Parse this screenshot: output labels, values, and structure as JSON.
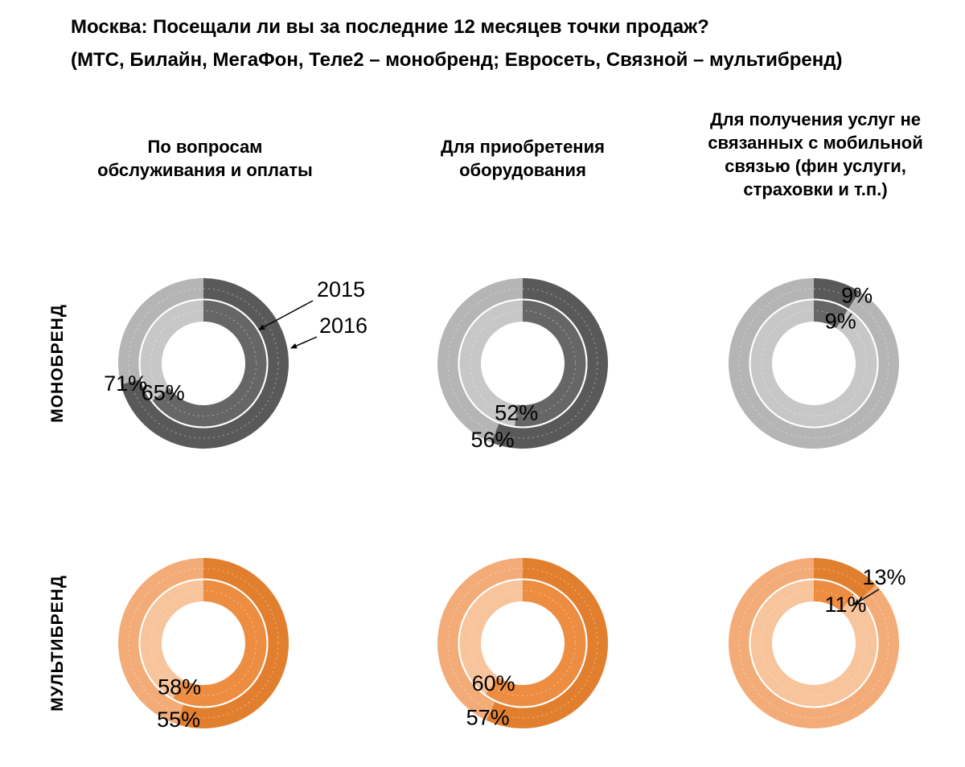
{
  "title": "Москва: Посещали ли вы за последние 12 месяцев точки продаж?",
  "subtitle": "(МТС, Билайн, МегаФон, Теле2 – монобренд; Евросеть, Связной – мультибренд)",
  "columns": [
    {
      "id": "service",
      "header": "По вопросам\nобслуживания и оплаты"
    },
    {
      "id": "equipment",
      "header": "Для приобретения\nоборудования"
    },
    {
      "id": "non_mobile",
      "header": "Для получения услуг не\nсвязанных с мобильной\nсвязью (фин услуги,\nстраховки и т.п.)"
    }
  ],
  "rows": [
    {
      "id": "monobrand",
      "label": "МОНОБРЕНД",
      "colors": {
        "outer_fill": "#595959",
        "inner_fill": "#666666",
        "outer_rest": "#b5b5b5",
        "inner_rest": "#c7c7c7"
      }
    },
    {
      "id": "multibrand",
      "label": "МУЛЬТИБРЕНД",
      "colors": {
        "outer_fill": "#e17f2f",
        "inner_fill": "#ec8d42",
        "outer_rest": "#f3ac77",
        "inner_rest": "#f7c49c"
      }
    }
  ],
  "annotation": {
    "label_2015": "2015",
    "label_2016": "2016"
  },
  "chart_data": [
    {
      "type": "donut",
      "row_id": "monobrand",
      "column_id": "service",
      "row": "МОНОБРЕНД",
      "column": "По вопросам обслуживания и оплаты",
      "unit": "%",
      "max": 100,
      "start": "12-oclock",
      "direction": "clockwise",
      "series": [
        {
          "name": "2015",
          "ring": "inner",
          "value": 65,
          "label": "65%"
        },
        {
          "name": "2016",
          "ring": "outer",
          "value": 71,
          "label": "71%"
        }
      ]
    },
    {
      "type": "donut",
      "row_id": "monobrand",
      "column_id": "equipment",
      "row": "МОНОБРЕНД",
      "column": "Для приобретения оборудования",
      "unit": "%",
      "max": 100,
      "start": "12-oclock",
      "direction": "clockwise",
      "series": [
        {
          "name": "2015",
          "ring": "inner",
          "value": 52,
          "label": "52%"
        },
        {
          "name": "2016",
          "ring": "outer",
          "value": 56,
          "label": "56%"
        }
      ]
    },
    {
      "type": "donut",
      "row_id": "monobrand",
      "column_id": "non_mobile",
      "row": "МОНОБРЕНД",
      "column": "Для получения услуг не связанных с мобильной связью (фин услуги, страховки и т.п.)",
      "unit": "%",
      "max": 100,
      "start": "12-oclock",
      "direction": "clockwise",
      "series": [
        {
          "name": "2015",
          "ring": "inner",
          "value": 9,
          "label": "9%"
        },
        {
          "name": "2016",
          "ring": "outer",
          "value": 9,
          "label": "9%"
        }
      ]
    },
    {
      "type": "donut",
      "row_id": "multibrand",
      "column_id": "service",
      "row": "МУЛЬТИБРЕНД",
      "column": "По вопросам обслуживания и оплаты",
      "unit": "%",
      "max": 100,
      "start": "12-oclock",
      "direction": "clockwise",
      "series": [
        {
          "name": "2015",
          "ring": "inner",
          "value": 58,
          "label": "58%"
        },
        {
          "name": "2016",
          "ring": "outer",
          "value": 55,
          "label": "55%"
        }
      ]
    },
    {
      "type": "donut",
      "row_id": "multibrand",
      "column_id": "equipment",
      "row": "МУЛЬТИБРЕНД",
      "column": "Для приобретения оборудования",
      "unit": "%",
      "max": 100,
      "start": "12-oclock",
      "direction": "clockwise",
      "series": [
        {
          "name": "2015",
          "ring": "inner",
          "value": 60,
          "label": "60%"
        },
        {
          "name": "2016",
          "ring": "outer",
          "value": 57,
          "label": "57%"
        }
      ]
    },
    {
      "type": "donut",
      "row_id": "multibrand",
      "column_id": "non_mobile",
      "row": "МУЛЬТИБРЕНД",
      "column": "Для получения услуг не связанных с мобильной связью (фин услуги, страховки и т.п.)",
      "unit": "%",
      "max": 100,
      "start": "12-oclock",
      "direction": "clockwise",
      "series": [
        {
          "name": "2015",
          "ring": "inner",
          "value": 11,
          "label": "11%"
        },
        {
          "name": "2016",
          "ring": "outer",
          "value": 13,
          "label": "13%"
        }
      ]
    }
  ]
}
